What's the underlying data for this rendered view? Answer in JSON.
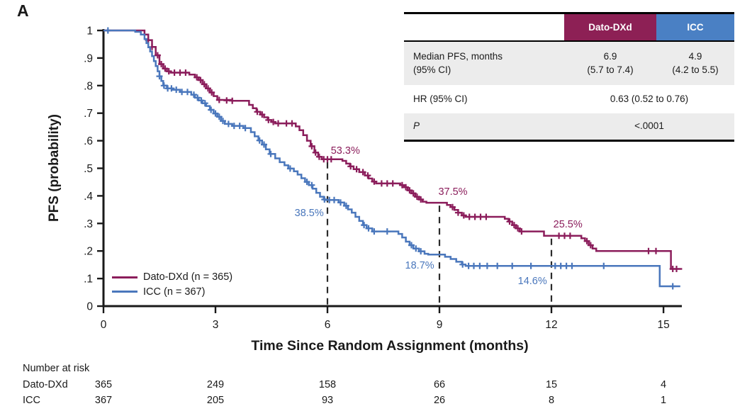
{
  "panel_label": "A",
  "colors": {
    "dato": "#8b1d5b",
    "icc": "#4a77bc",
    "dato_header_bg": "#8d2055",
    "icc_header_bg": "#4a80c4",
    "row_alt_bg": "#ececec",
    "axis": "#1a1a1a",
    "dashed": "#2b2b2b"
  },
  "chart_data": {
    "type": "line",
    "subtype": "kaplan-meier-step",
    "title": "",
    "xlabel": "Time Since Random Assignment (months)",
    "ylabel": "PFS (probability)",
    "xlim": [
      0,
      15.5
    ],
    "ylim": [
      0,
      1
    ],
    "grid": false,
    "legend_position": "lower-left",
    "xticks": [
      0,
      3,
      6,
      9,
      12,
      15
    ],
    "yticks": [
      {
        "v": 0,
        "label": "0"
      },
      {
        "v": 0.1,
        "label": ".1"
      },
      {
        "v": 0.2,
        "label": ".2"
      },
      {
        "v": 0.3,
        "label": ".3"
      },
      {
        "v": 0.4,
        "label": ".4"
      },
      {
        "v": 0.5,
        "label": ".5"
      },
      {
        "v": 0.6,
        "label": ".6"
      },
      {
        "v": 0.7,
        "label": ".7"
      },
      {
        "v": 0.8,
        "label": ".8"
      },
      {
        "v": 0.9,
        "label": ".9"
      },
      {
        "v": 1,
        "label": "1"
      }
    ],
    "dashed_guides": [
      {
        "x": 6,
        "y_top": 0.533
      },
      {
        "x": 9,
        "y_top": 0.375
      },
      {
        "x": 12,
        "y_top": 0.255
      }
    ],
    "annotations": [
      {
        "text": "53.3%",
        "t": 6.48,
        "p": 0.553,
        "color_key": "dato"
      },
      {
        "text": "37.5%",
        "t": 9.36,
        "p": 0.404,
        "color_key": "dato"
      },
      {
        "text": "25.5%",
        "t": 12.44,
        "p": 0.285,
        "color_key": "dato"
      },
      {
        "text": "38.5%",
        "t": 5.51,
        "p": 0.327,
        "color_key": "icc"
      },
      {
        "text": "18.7%",
        "t": 8.47,
        "p": 0.136,
        "color_key": "icc"
      },
      {
        "text": "14.6%",
        "t": 11.49,
        "p": 0.08,
        "color_key": "icc"
      }
    ],
    "series": [
      {
        "name": "Dato-DXd",
        "n": 365,
        "legend_label": "Dato-DXd (n = 365)",
        "color_key": "dato",
        "median_months": 6.9,
        "landmarks": {
          "6": 0.533,
          "9": 0.375,
          "12": 0.255
        },
        "steps": [
          [
            0,
            1
          ],
          [
            1.1,
            0.985
          ],
          [
            1.2,
            0.965
          ],
          [
            1.3,
            0.94
          ],
          [
            1.4,
            0.91
          ],
          [
            1.5,
            0.878
          ],
          [
            1.6,
            0.862
          ],
          [
            1.7,
            0.852
          ],
          [
            1.8,
            0.847
          ],
          [
            2.3,
            0.84
          ],
          [
            2.45,
            0.83
          ],
          [
            2.55,
            0.82
          ],
          [
            2.65,
            0.805
          ],
          [
            2.75,
            0.79
          ],
          [
            2.85,
            0.775
          ],
          [
            2.95,
            0.762
          ],
          [
            3.05,
            0.748
          ],
          [
            3.45,
            0.745
          ],
          [
            3.9,
            0.73
          ],
          [
            4.0,
            0.718
          ],
          [
            4.1,
            0.705
          ],
          [
            4.2,
            0.695
          ],
          [
            4.3,
            0.685
          ],
          [
            4.4,
            0.675
          ],
          [
            4.5,
            0.668
          ],
          [
            4.6,
            0.663
          ],
          [
            5.15,
            0.652
          ],
          [
            5.25,
            0.638
          ],
          [
            5.35,
            0.62
          ],
          [
            5.45,
            0.6
          ],
          [
            5.55,
            0.58
          ],
          [
            5.65,
            0.557
          ],
          [
            5.75,
            0.542
          ],
          [
            5.85,
            0.533
          ],
          [
            6.4,
            0.527
          ],
          [
            6.5,
            0.517
          ],
          [
            6.6,
            0.507
          ],
          [
            6.7,
            0.497
          ],
          [
            6.85,
            0.486
          ],
          [
            7.0,
            0.474
          ],
          [
            7.1,
            0.463
          ],
          [
            7.2,
            0.452
          ],
          [
            7.3,
            0.445
          ],
          [
            7.95,
            0.439
          ],
          [
            8.05,
            0.431
          ],
          [
            8.15,
            0.42
          ],
          [
            8.25,
            0.409
          ],
          [
            8.35,
            0.397
          ],
          [
            8.45,
            0.387
          ],
          [
            8.55,
            0.379
          ],
          [
            8.65,
            0.375
          ],
          [
            9.2,
            0.367
          ],
          [
            9.3,
            0.359
          ],
          [
            9.4,
            0.349
          ],
          [
            9.5,
            0.339
          ],
          [
            9.6,
            0.329
          ],
          [
            9.7,
            0.324
          ],
          [
            10.75,
            0.317
          ],
          [
            10.85,
            0.307
          ],
          [
            10.95,
            0.294
          ],
          [
            11.05,
            0.282
          ],
          [
            11.15,
            0.271
          ],
          [
            11.8,
            0.255
          ],
          [
            12.8,
            0.246
          ],
          [
            12.9,
            0.236
          ],
          [
            13.0,
            0.221
          ],
          [
            13.1,
            0.209
          ],
          [
            13.2,
            0.2
          ],
          [
            15.2,
            0.135
          ],
          [
            15.5,
            0.135
          ]
        ],
        "censors": [
          [
            1.2,
            0.965
          ],
          [
            1.3,
            0.94
          ],
          [
            1.45,
            0.91
          ],
          [
            1.55,
            0.878
          ],
          [
            1.65,
            0.862
          ],
          [
            1.75,
            0.852
          ],
          [
            1.9,
            0.847
          ],
          [
            2.05,
            0.847
          ],
          [
            2.2,
            0.847
          ],
          [
            2.5,
            0.83
          ],
          [
            2.6,
            0.82
          ],
          [
            2.7,
            0.805
          ],
          [
            2.8,
            0.79
          ],
          [
            2.9,
            0.775
          ],
          [
            3.1,
            0.748
          ],
          [
            3.3,
            0.746
          ],
          [
            3.45,
            0.745
          ],
          [
            4.12,
            0.705
          ],
          [
            4.25,
            0.695
          ],
          [
            4.42,
            0.675
          ],
          [
            4.55,
            0.668
          ],
          [
            4.68,
            0.663
          ],
          [
            4.9,
            0.663
          ],
          [
            5.05,
            0.663
          ],
          [
            5.58,
            0.58
          ],
          [
            5.68,
            0.557
          ],
          [
            5.78,
            0.542
          ],
          [
            5.9,
            0.533
          ],
          [
            6.0,
            0.533
          ],
          [
            6.1,
            0.533
          ],
          [
            6.62,
            0.507
          ],
          [
            6.78,
            0.497
          ],
          [
            6.95,
            0.486
          ],
          [
            7.08,
            0.474
          ],
          [
            7.25,
            0.452
          ],
          [
            7.45,
            0.445
          ],
          [
            7.6,
            0.445
          ],
          [
            7.75,
            0.445
          ],
          [
            8.0,
            0.439
          ],
          [
            8.1,
            0.431
          ],
          [
            8.2,
            0.42
          ],
          [
            8.3,
            0.409
          ],
          [
            8.4,
            0.397
          ],
          [
            8.5,
            0.387
          ],
          [
            9.35,
            0.359
          ],
          [
            9.5,
            0.339
          ],
          [
            9.65,
            0.329
          ],
          [
            9.8,
            0.324
          ],
          [
            9.95,
            0.324
          ],
          [
            10.1,
            0.324
          ],
          [
            10.25,
            0.324
          ],
          [
            10.88,
            0.307
          ],
          [
            11.0,
            0.294
          ],
          [
            11.1,
            0.282
          ],
          [
            11.2,
            0.271
          ],
          [
            12.2,
            0.255
          ],
          [
            12.35,
            0.255
          ],
          [
            12.5,
            0.255
          ],
          [
            12.95,
            0.236
          ],
          [
            13.05,
            0.221
          ],
          [
            14.6,
            0.2
          ],
          [
            14.8,
            0.2
          ],
          [
            15.25,
            0.135
          ],
          [
            15.35,
            0.135
          ]
        ]
      },
      {
        "name": "ICC",
        "n": 367,
        "legend_label": "ICC (n = 367)",
        "color_key": "icc",
        "median_months": 4.9,
        "landmarks": {
          "6": 0.385,
          "9": 0.187,
          "12": 0.146
        },
        "steps": [
          [
            0,
            1
          ],
          [
            0.85,
            0.995
          ],
          [
            1.0,
            0.985
          ],
          [
            1.1,
            0.969
          ],
          [
            1.15,
            0.954
          ],
          [
            1.2,
            0.939
          ],
          [
            1.25,
            0.924
          ],
          [
            1.3,
            0.907
          ],
          [
            1.35,
            0.889
          ],
          [
            1.4,
            0.871
          ],
          [
            1.45,
            0.852
          ],
          [
            1.5,
            0.834
          ],
          [
            1.55,
            0.817
          ],
          [
            1.6,
            0.8
          ],
          [
            1.7,
            0.79
          ],
          [
            1.85,
            0.785
          ],
          [
            2.05,
            0.777
          ],
          [
            2.35,
            0.767
          ],
          [
            2.45,
            0.756
          ],
          [
            2.55,
            0.746
          ],
          [
            2.65,
            0.736
          ],
          [
            2.75,
            0.726
          ],
          [
            2.85,
            0.712
          ],
          [
            2.95,
            0.699
          ],
          [
            3.05,
            0.687
          ],
          [
            3.15,
            0.672
          ],
          [
            3.25,
            0.661
          ],
          [
            3.45,
            0.654
          ],
          [
            3.75,
            0.646
          ],
          [
            3.95,
            0.631
          ],
          [
            4.05,
            0.616
          ],
          [
            4.15,
            0.601
          ],
          [
            4.25,
            0.586
          ],
          [
            4.35,
            0.569
          ],
          [
            4.45,
            0.552
          ],
          [
            4.6,
            0.536
          ],
          [
            4.72,
            0.522
          ],
          [
            4.85,
            0.511
          ],
          [
            4.95,
            0.499
          ],
          [
            5.1,
            0.489
          ],
          [
            5.2,
            0.477
          ],
          [
            5.3,
            0.464
          ],
          [
            5.4,
            0.451
          ],
          [
            5.5,
            0.439
          ],
          [
            5.6,
            0.426
          ],
          [
            5.7,
            0.411
          ],
          [
            5.8,
            0.397
          ],
          [
            5.9,
            0.387
          ],
          [
            5.95,
            0.385
          ],
          [
            6.3,
            0.376
          ],
          [
            6.45,
            0.364
          ],
          [
            6.55,
            0.351
          ],
          [
            6.65,
            0.339
          ],
          [
            6.75,
            0.324
          ],
          [
            6.85,
            0.309
          ],
          [
            6.95,
            0.294
          ],
          [
            7.05,
            0.282
          ],
          [
            7.2,
            0.271
          ],
          [
            7.9,
            0.262
          ],
          [
            8.0,
            0.249
          ],
          [
            8.1,
            0.234
          ],
          [
            8.2,
            0.221
          ],
          [
            8.3,
            0.209
          ],
          [
            8.45,
            0.199
          ],
          [
            8.6,
            0.19
          ],
          [
            8.7,
            0.187
          ],
          [
            9.15,
            0.179
          ],
          [
            9.3,
            0.171
          ],
          [
            9.45,
            0.161
          ],
          [
            9.6,
            0.151
          ],
          [
            9.7,
            0.146
          ],
          [
            14.9,
            0.072
          ],
          [
            15.45,
            0.072
          ]
        ],
        "censors": [
          [
            0.12,
            1
          ],
          [
            1.5,
            0.834
          ],
          [
            1.62,
            0.8
          ],
          [
            1.72,
            0.79
          ],
          [
            1.82,
            0.79
          ],
          [
            1.95,
            0.785
          ],
          [
            2.1,
            0.777
          ],
          [
            2.25,
            0.777
          ],
          [
            2.42,
            0.767
          ],
          [
            2.52,
            0.756
          ],
          [
            2.62,
            0.746
          ],
          [
            2.72,
            0.736
          ],
          [
            2.88,
            0.712
          ],
          [
            3.0,
            0.699
          ],
          [
            3.1,
            0.687
          ],
          [
            3.2,
            0.672
          ],
          [
            3.35,
            0.661
          ],
          [
            3.5,
            0.654
          ],
          [
            3.65,
            0.654
          ],
          [
            3.8,
            0.646
          ],
          [
            4.18,
            0.601
          ],
          [
            4.3,
            0.586
          ],
          [
            4.48,
            0.552
          ],
          [
            5.0,
            0.499
          ],
          [
            5.45,
            0.451
          ],
          [
            5.58,
            0.439
          ],
          [
            5.92,
            0.387
          ],
          [
            6.05,
            0.385
          ],
          [
            6.18,
            0.385
          ],
          [
            6.35,
            0.376
          ],
          [
            6.5,
            0.364
          ],
          [
            6.98,
            0.294
          ],
          [
            7.1,
            0.282
          ],
          [
            7.25,
            0.271
          ],
          [
            7.6,
            0.271
          ],
          [
            8.25,
            0.221
          ],
          [
            8.37,
            0.209
          ],
          [
            8.5,
            0.199
          ],
          [
            9.62,
            0.151
          ],
          [
            9.78,
            0.146
          ],
          [
            9.92,
            0.146
          ],
          [
            10.08,
            0.146
          ],
          [
            10.28,
            0.146
          ],
          [
            10.55,
            0.146
          ],
          [
            10.95,
            0.146
          ],
          [
            11.45,
            0.146
          ],
          [
            12.1,
            0.146
          ],
          [
            12.25,
            0.146
          ],
          [
            12.4,
            0.146
          ],
          [
            12.55,
            0.146
          ],
          [
            13.4,
            0.146
          ],
          [
            15.25,
            0.072
          ]
        ]
      }
    ]
  },
  "legend": {
    "items": [
      {
        "label": "Dato-DXd (n = 365)",
        "color_key": "dato"
      },
      {
        "label": "ICC (n = 367)",
        "color_key": "icc"
      }
    ]
  },
  "stats_table": {
    "header": {
      "col1": "Dato-DXd",
      "col2": "ICC"
    },
    "row_median": {
      "label_line1": "Median PFS, months",
      "label_line2": "(95% CI)",
      "dato_line1": "6.9",
      "dato_line2": "(5.7 to 7.4)",
      "icc_line1": "4.9",
      "icc_line2": "(4.2 to 5.5)"
    },
    "row_hr": {
      "label": "HR (95% CI)",
      "value": "0.63 (0.52 to 0.76)"
    },
    "row_p": {
      "label": "P",
      "value": "<.0001"
    }
  },
  "risk_table": {
    "title": "Number at risk",
    "times": [
      0,
      3,
      6,
      9,
      12,
      15
    ],
    "rows": [
      {
        "label": "Dato-DXd",
        "values": [
          "365",
          "249",
          "158",
          "66",
          "15",
          "4"
        ]
      },
      {
        "label": "ICC",
        "values": [
          "367",
          "205",
          "93",
          "26",
          "8",
          "1"
        ]
      }
    ]
  }
}
